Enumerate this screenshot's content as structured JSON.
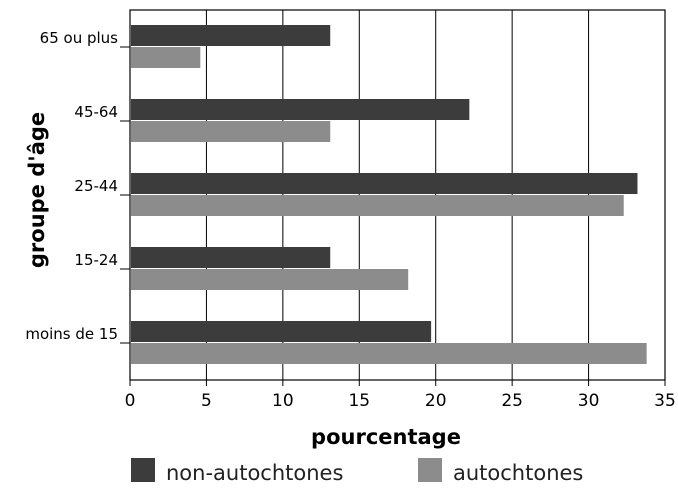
{
  "chart_data": {
    "type": "bar",
    "orientation": "horizontal",
    "title": "",
    "xlabel": "pourcentage",
    "ylabel": "groupe d'âge",
    "categories": [
      "65 ou plus",
      "45-64",
      "25-44",
      "15-24",
      "moins de 15"
    ],
    "xticks": [
      "0",
      "5",
      "10",
      "15",
      "20",
      "25",
      "30",
      "35"
    ],
    "xlim": [
      0,
      35
    ],
    "grid": true,
    "legend_position": "bottom",
    "series": [
      {
        "name": "non-autochtones",
        "color": "#3c3c3c",
        "values": [
          13.1,
          22.2,
          33.2,
          13.1,
          19.7
        ]
      },
      {
        "name": "autochtones",
        "color": "#8c8c8c",
        "values": [
          4.6,
          13.1,
          32.3,
          18.2,
          33.8
        ]
      }
    ]
  }
}
